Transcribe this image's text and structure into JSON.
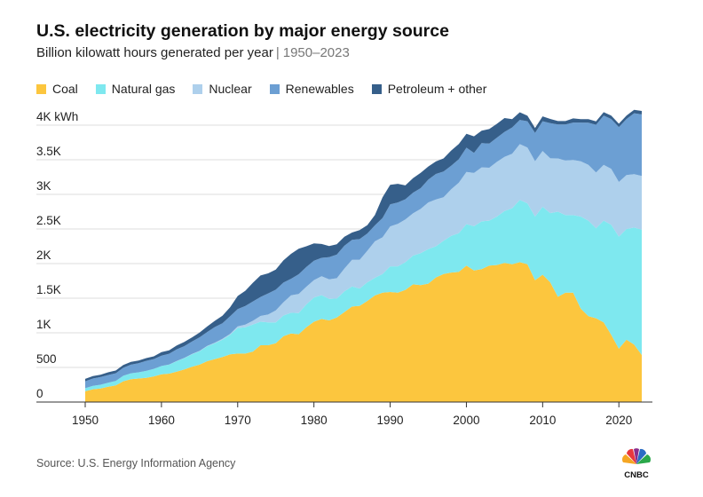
{
  "chart_data": {
    "type": "area",
    "stacked": true,
    "title": "U.S. electricity generation by major energy source",
    "subtitle": "Billion kilowatt hours generated per year",
    "subtitle_separator": "|",
    "subtitle_range": "1950–2023",
    "ylim": [
      0,
      4000
    ],
    "yticks": [
      0,
      500,
      1000,
      1500,
      2000,
      2500,
      3000,
      3500,
      4000
    ],
    "ytick_labels": [
      "0",
      "500",
      "1K",
      "1.5K",
      "2K",
      "2.5K",
      "3K",
      "3.5K",
      "4K kWh"
    ],
    "xticks": [
      1950,
      1960,
      1970,
      1980,
      1990,
      2000,
      2010,
      2020
    ],
    "xtick_labels": [
      "1950",
      "1960",
      "1970",
      "1980",
      "1990",
      "2000",
      "2010",
      "2020"
    ],
    "x": [
      1950,
      1951,
      1952,
      1953,
      1954,
      1955,
      1956,
      1957,
      1958,
      1959,
      1960,
      1961,
      1962,
      1963,
      1964,
      1965,
      1966,
      1967,
      1968,
      1969,
      1970,
      1971,
      1972,
      1973,
      1974,
      1975,
      1976,
      1977,
      1978,
      1979,
      1980,
      1981,
      1982,
      1983,
      1984,
      1985,
      1986,
      1987,
      1988,
      1989,
      1990,
      1991,
      1992,
      1993,
      1994,
      1995,
      1996,
      1997,
      1998,
      1999,
      2000,
      2001,
      2002,
      2003,
      2004,
      2005,
      2006,
      2007,
      2008,
      2009,
      2010,
      2011,
      2012,
      2013,
      2014,
      2015,
      2016,
      2017,
      2018,
      2019,
      2020,
      2021,
      2022,
      2023
    ],
    "series": [
      {
        "name": "Coal",
        "color": "#fcc63e",
        "values": [
          155,
          185,
          195,
          220,
          240,
          300,
          330,
          340,
          350,
          370,
          400,
          410,
          440,
          470,
          510,
          540,
          590,
          620,
          650,
          690,
          700,
          700,
          730,
          820,
          820,
          850,
          950,
          990,
          980,
          1080,
          1160,
          1200,
          1180,
          1220,
          1300,
          1380,
          1390,
          1460,
          1540,
          1580,
          1590,
          1580,
          1620,
          1700,
          1690,
          1710,
          1800,
          1850,
          1870,
          1880,
          1970,
          1900,
          1920,
          1970,
          1980,
          2010,
          1990,
          2020,
          1990,
          1760,
          1840,
          1730,
          1520,
          1580,
          1580,
          1350,
          1240,
          1210,
          1150,
          970,
          770,
          900,
          830,
          680
        ]
      },
      {
        "name": "Natural gas",
        "color": "#7ee8ef",
        "values": [
          45,
          50,
          55,
          60,
          65,
          80,
          85,
          90,
          100,
          110,
          120,
          130,
          150,
          165,
          180,
          195,
          215,
          230,
          250,
          280,
          370,
          380,
          390,
          340,
          330,
          300,
          300,
          300,
          305,
          330,
          350,
          345,
          310,
          275,
          300,
          290,
          250,
          270,
          255,
          270,
          370,
          380,
          400,
          415,
          460,
          500,
          450,
          480,
          530,
          560,
          600,
          640,
          690,
          650,
          700,
          750,
          810,
          900,
          880,
          920,
          980,
          1000,
          1230,
          1120,
          1120,
          1330,
          1380,
          1300,
          1470,
          1590,
          1620,
          1600,
          1690,
          1810
        ]
      },
      {
        "name": "Nuclear",
        "color": "#aed0ec",
        "values": [
          0,
          0,
          0,
          0,
          0,
          0,
          0,
          0,
          0,
          0,
          1,
          2,
          2,
          3,
          3,
          4,
          6,
          8,
          13,
          14,
          22,
          38,
          54,
          83,
          114,
          173,
          191,
          251,
          276,
          255,
          251,
          273,
          283,
          294,
          328,
          384,
          414,
          455,
          527,
          529,
          577,
          613,
          619,
          610,
          640,
          673,
          675,
          629,
          673,
          728,
          754,
          769,
          780,
          764,
          789,
          782,
          787,
          806,
          806,
          799,
          807,
          790,
          769,
          789,
          797,
          797,
          806,
          805,
          807,
          809,
          790,
          778,
          772,
          775
        ]
      },
      {
        "name": "Renewables",
        "color": "#6c9fd3",
        "values": [
          100,
          105,
          110,
          110,
          110,
          115,
          125,
          130,
          145,
          140,
          150,
          155,
          170,
          170,
          180,
          195,
          200,
          225,
          225,
          255,
          250,
          270,
          280,
          275,
          305,
          300,
          285,
          240,
          285,
          285,
          280,
          265,
          320,
          340,
          330,
          290,
          300,
          250,
          230,
          280,
          320,
          310,
          290,
          300,
          300,
          330,
          370,
          370,
          340,
          340,
          350,
          290,
          350,
          350,
          350,
          360,
          380,
          350,
          380,
          410,
          430,
          510,
          490,
          520,
          540,
          560,
          610,
          690,
          710,
          720,
          790,
          810,
          880,
          890
        ]
      },
      {
        "name": "Petroleum + other",
        "color": "#365f8a",
        "values": [
          35,
          35,
          35,
          40,
          40,
          40,
          40,
          40,
          40,
          40,
          50,
          50,
          55,
          60,
          60,
          70,
          80,
          90,
          110,
          130,
          190,
          220,
          270,
          310,
          290,
          290,
          320,
          360,
          370,
          300,
          250,
          200,
          160,
          150,
          130,
          105,
          130,
          120,
          150,
          300,
          280,
          270,
          200,
          210,
          220,
          190,
          180,
          190,
          220,
          220,
          200,
          240,
          180,
          210,
          200,
          200,
          120,
          110,
          80,
          70,
          70,
          60,
          50,
          50,
          60,
          50,
          50,
          50,
          50,
          50,
          50,
          50,
          50,
          50
        ]
      }
    ]
  },
  "source": "Source: U.S. Energy Information Agency",
  "logo": {
    "text": "CNBC"
  }
}
